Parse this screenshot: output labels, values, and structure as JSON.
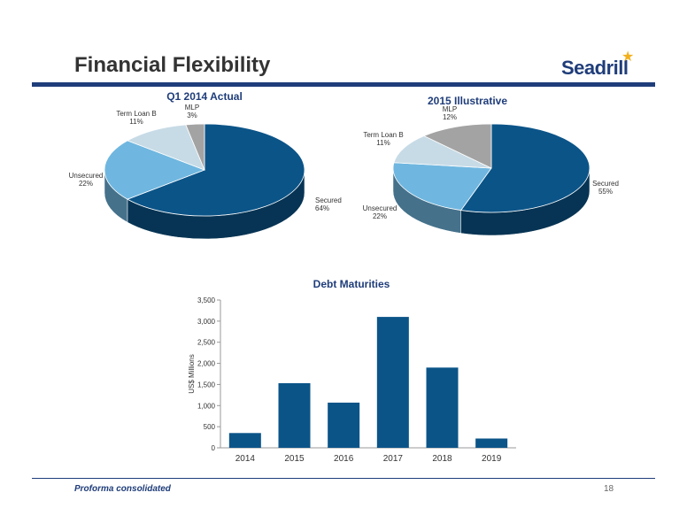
{
  "page": {
    "title": "Financial Flexibility",
    "logo_text": "Seadrill",
    "footer_note": "Proforma consolidated",
    "page_number": "18"
  },
  "chart_data": [
    {
      "type": "pie",
      "title": "Q1 2014 Actual",
      "slices": [
        {
          "label": "Secured",
          "value": 64,
          "display": "64%",
          "color": "#0b5488"
        },
        {
          "label": "Unsecured",
          "value": 22,
          "display": "22%",
          "color": "#6fb7e0"
        },
        {
          "label": "Term Loan B",
          "value": 11,
          "display": "11%",
          "color": "#c7dbe6"
        },
        {
          "label": "MLP",
          "value": 3,
          "display": "3%",
          "color": "#a3a3a3"
        }
      ]
    },
    {
      "type": "pie",
      "title": "2015 Illustrative",
      "slices": [
        {
          "label": "Secured",
          "value": 55,
          "display": "55%",
          "color": "#0b5488"
        },
        {
          "label": "Unsecured",
          "value": 22,
          "display": "22%",
          "color": "#6fb7e0"
        },
        {
          "label": "Term Loan B",
          "value": 11,
          "display": "11%",
          "color": "#c7dbe6"
        },
        {
          "label": "MLP",
          "value": 12,
          "display": "12%",
          "color": "#a3a3a3"
        }
      ]
    },
    {
      "type": "bar",
      "title": "Debt Maturities",
      "ylabel": "US$ Millions",
      "xlabel": "",
      "categories": [
        "2014",
        "2015",
        "2016",
        "2017",
        "2018",
        "2019"
      ],
      "values": [
        350,
        1530,
        1070,
        3100,
        1900,
        220
      ],
      "ylim": [
        0,
        3500
      ],
      "yticks": [
        "0",
        "500",
        "1,000",
        "1,500",
        "2,000",
        "2,500",
        "3,000",
        "3,500"
      ],
      "bar_color": "#0b5488",
      "grid": false
    }
  ]
}
